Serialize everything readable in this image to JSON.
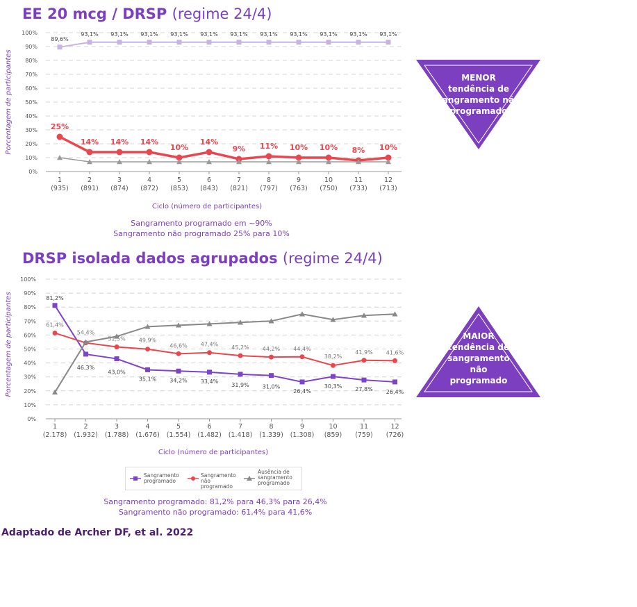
{
  "chart1_title_bold": "EE 20 mcg / DRSP",
  "chart1_title_regular": "(regime 24/4)",
  "chart2_title_bold": "DRSP isolada dados agrupados",
  "chart2_title_regular": "(regime 24/4)",
  "chart1_notes": [
    "Sangramento programado em ~90%",
    "Sangramento não programado 25% para 10%"
  ],
  "chart2_notes": [
    "Sangramento programado: 81,2% para 46,3% para 26,4%",
    "Sangramento não programado: 61,4% para 41,6%"
  ],
  "callout_top": [
    "MENOR",
    "tendência de",
    "sangramento não",
    "programado"
  ],
  "callout_bottom": [
    "MAIOR",
    "tendência de",
    "sangramento",
    "não",
    "programado"
  ],
  "source": "Adaptado de Archer DF, et al. 2022",
  "colors": {
    "purple_title": "#7b3fbf",
    "scheduled_light": "#c9b3e0",
    "scheduled": "#7e44c7",
    "unscheduled": "#e8474f",
    "absence": "#888888",
    "callout": "#7b3fbf"
  },
  "chart_data": [
    {
      "type": "line",
      "title": "EE 20 mcg / DRSP (regime 24/4)",
      "xlabel": "Ciclo (número de participantes)",
      "ylabel": "Porcentagem de participantes",
      "ylim": [
        0,
        100
      ],
      "yticks": [
        "0%",
        "10%",
        "20%",
        "30%",
        "40%",
        "50%",
        "60%",
        "70%",
        "80%",
        "90%",
        "100%"
      ],
      "categories": [
        "1",
        "2",
        "3",
        "4",
        "5",
        "6",
        "7",
        "8",
        "9",
        "10",
        "11",
        "12"
      ],
      "category_counts": [
        "(935)",
        "(891)",
        "(874)",
        "(872)",
        "(853)",
        "(843)",
        "(821)",
        "(797)",
        "(763)",
        "(750)",
        "(733)",
        "(713)"
      ],
      "grid": true,
      "series": [
        {
          "values": [
            89.6,
            93.1,
            93.1,
            93.1,
            93.1,
            93.1,
            93.1,
            93.1,
            93.1,
            93.1,
            93.1,
            93.1
          ],
          "labels": [
            "89,6%",
            "93,1%",
            "93,1%",
            "93,1%",
            "93,1%",
            "93,1%",
            "93,1%",
            "93,1%",
            "93,1%",
            "93,1%",
            "93,1%",
            "93,1%"
          ]
        },
        {
          "values": [
            25,
            14,
            14,
            14,
            10,
            14,
            9,
            11,
            10,
            10,
            8,
            10
          ],
          "labels": [
            "25%",
            "14%",
            "14%",
            "14%",
            "10%",
            "14%",
            "9%",
            "11%",
            "10%",
            "10%",
            "8%",
            "10%"
          ]
        },
        {
          "values": [
            10,
            7,
            7,
            7,
            7,
            7,
            7,
            7,
            7,
            7,
            7,
            7
          ],
          "labels": []
        }
      ]
    },
    {
      "type": "line",
      "title": "DRSP isolada dados agrupados (regime 24/4)",
      "xlabel": "Ciclo (número de participantes)",
      "ylabel": "Porcentagem de participantes",
      "ylim": [
        0,
        100
      ],
      "yticks": [
        "0%",
        "10%",
        "20%",
        "30%",
        "40%",
        "50%",
        "60%",
        "70%",
        "80%",
        "90%",
        "100%"
      ],
      "categories": [
        "1",
        "2",
        "3",
        "4",
        "5",
        "6",
        "7",
        "8",
        "9",
        "10",
        "11",
        "12"
      ],
      "category_counts": [
        "(2.178)",
        "(1.932)",
        "(1.788)",
        "(1.676)",
        "(1.554)",
        "(1.482)",
        "(1.418)",
        "(1.339)",
        "(1.308)",
        "(859)",
        "(759)",
        "(726)"
      ],
      "grid": true,
      "legend_position": "bottom",
      "series": [
        {
          "name": "Sangramento programado",
          "values": [
            81.2,
            46.3,
            43.0,
            35.1,
            34.2,
            33.4,
            31.9,
            31.0,
            26.4,
            30.3,
            27.8,
            26.4
          ],
          "labels": [
            "81,2%",
            "46,3%",
            "43,0%",
            "35,1%",
            "34,2%",
            "33,4%",
            "31,9%",
            "31,0%",
            "26,4%",
            "30,3%",
            "27,8%",
            "26,4%"
          ]
        },
        {
          "name": "Sangramento não programado",
          "values": [
            61.4,
            54.4,
            51.5,
            49.9,
            46.6,
            47.4,
            45.2,
            44.2,
            44.4,
            38.2,
            41.9,
            41.6
          ],
          "labels": [
            "61,4%",
            "54,4%",
            "51,5%",
            "49,9%",
            "46,6%",
            "47,4%",
            "45,2%",
            "44,2%",
            "44,4%",
            "38,2%",
            "41,9%",
            "41,6%"
          ]
        },
        {
          "name": "Ausência de sangramento programado",
          "values": [
            19,
            55,
            59,
            66,
            67,
            68,
            69,
            70,
            75,
            71,
            74,
            75
          ],
          "labels": []
        }
      ]
    }
  ]
}
